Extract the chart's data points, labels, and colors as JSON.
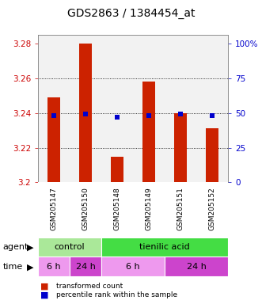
{
  "title": "GDS2863 / 1384454_at",
  "samples": [
    "GSM205147",
    "GSM205150",
    "GSM205148",
    "GSM205149",
    "GSM205151",
    "GSM205152"
  ],
  "bar_values": [
    3.249,
    3.28,
    3.215,
    3.258,
    3.24,
    3.231
  ],
  "percentile_values": [
    3.2385,
    3.2395,
    3.2375,
    3.2385,
    3.2395,
    3.2385
  ],
  "y_min": 3.2,
  "y_max": 3.285,
  "y_ticks": [
    3.2,
    3.22,
    3.24,
    3.26,
    3.28
  ],
  "right_tick_positions": [
    3.2,
    3.22,
    3.24,
    3.26,
    3.28
  ],
  "right_tick_labels": [
    "0",
    "25",
    "50",
    "75",
    "100%"
  ],
  "bar_color": "#cc2200",
  "dot_color": "#0000cc",
  "agent_row": [
    {
      "label": "control",
      "start": 0,
      "end": 2,
      "color": "#aae899"
    },
    {
      "label": "tienilic acid",
      "start": 2,
      "end": 6,
      "color": "#44dd44"
    }
  ],
  "time_row": [
    {
      "label": "6 h",
      "start": 0,
      "end": 1,
      "color": "#ee99ee"
    },
    {
      "label": "24 h",
      "start": 1,
      "end": 2,
      "color": "#cc44cc"
    },
    {
      "label": "6 h",
      "start": 2,
      "end": 4,
      "color": "#ee99ee"
    },
    {
      "label": "24 h",
      "start": 4,
      "end": 6,
      "color": "#cc44cc"
    }
  ],
  "legend_bar_color": "#cc2200",
  "legend_dot_color": "#0000cc",
  "bg_color": "#ffffff",
  "plot_bg_color": "#f2f2f2",
  "left_tick_color": "#cc0000",
  "right_tick_color": "#0000cc",
  "label_bg_color": "#d0d0d0",
  "grid_color": "#000000",
  "bar_width": 0.4
}
